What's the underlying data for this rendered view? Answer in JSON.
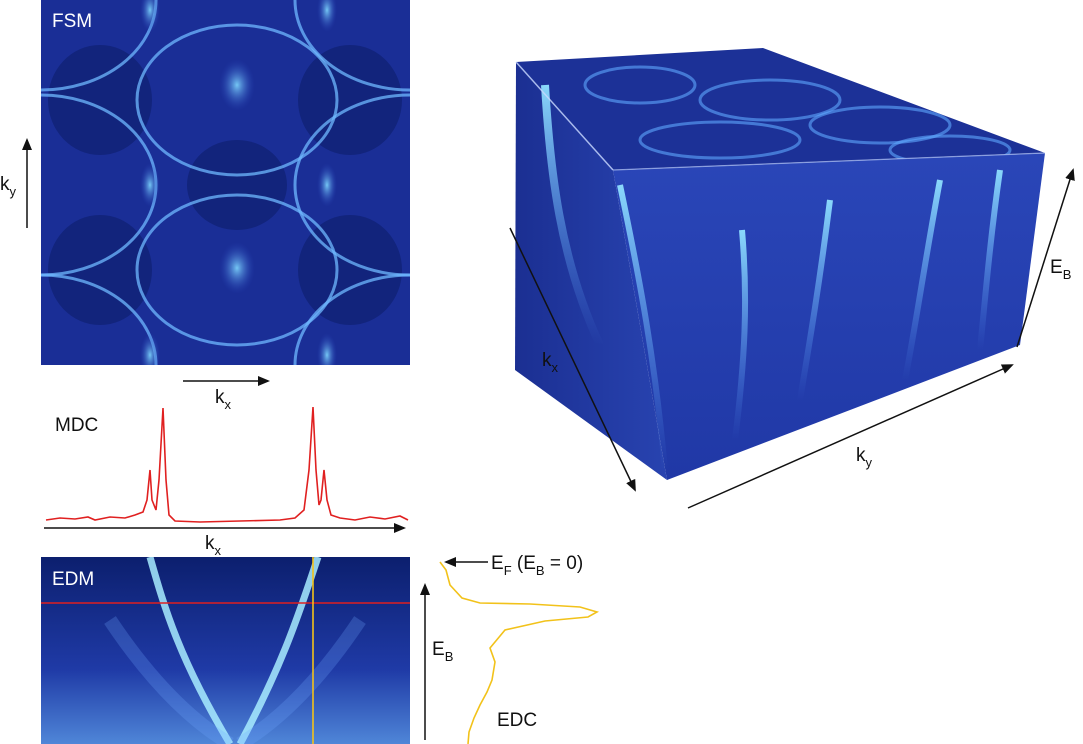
{
  "fsm": {
    "title": "FSM",
    "x_axis": "k",
    "x_sub": "x",
    "y_axis": "k",
    "y_sub": "y"
  },
  "mdc": {
    "title": "MDC",
    "axis": "k",
    "axis_sub": "x"
  },
  "edm": {
    "title": "EDM",
    "axis": "E",
    "axis_sub": "B"
  },
  "edc": {
    "title": "EDC",
    "fermi_main": "E",
    "fermi_sub": "F",
    "fermi_rest_open": " (E",
    "fermi_rest_sub": "B",
    "fermi_rest_close": " = 0)"
  },
  "cube": {
    "kx": "k",
    "kx_sub": "x",
    "ky": "k",
    "ky_sub": "y",
    "eb": "E",
    "eb_sub": "B"
  },
  "colors": {
    "map_dark": "#0c1f6e",
    "map_mid": "#2540b8",
    "map_light": "#7fd8ff",
    "mdc_curve": "#e02020",
    "edc_curve": "#f2c21a",
    "cut_line_red": "#e02020",
    "cut_line_yellow": "#f2c21a"
  }
}
